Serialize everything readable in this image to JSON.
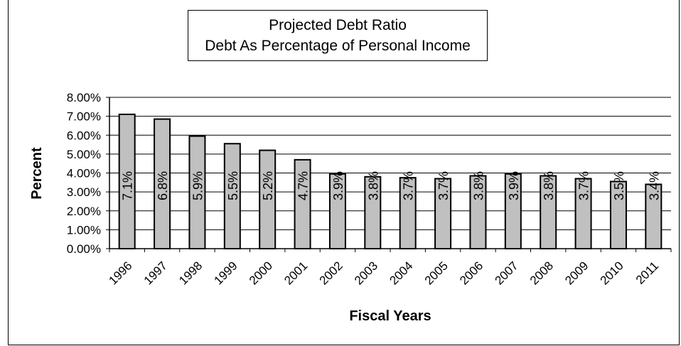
{
  "chart_data": {
    "type": "bar",
    "title": "Projected Debt Ratio",
    "subtitle": "Debt As Percentage of Personal Income",
    "xlabel": "Fiscal Years",
    "ylabel": "Percent",
    "categories": [
      "1996",
      "1997",
      "1998",
      "1999",
      "2000",
      "2001",
      "2002",
      "2003",
      "2004",
      "2005",
      "2006",
      "2007",
      "2008",
      "2009",
      "2010",
      "2011"
    ],
    "values": [
      7.1,
      6.85,
      5.95,
      5.55,
      5.2,
      4.7,
      3.95,
      3.8,
      3.75,
      3.7,
      3.85,
      3.95,
      3.85,
      3.7,
      3.55,
      3.4
    ],
    "data_labels": [
      "7.1%",
      "6.8%",
      "5.9%",
      "5.5%",
      "5.2%",
      "4.7%",
      "3.9%",
      "3.8%",
      "3.7%",
      "3.7%",
      "3.8%",
      "3.9%",
      "3.8%",
      "3.7%",
      "3.5%",
      "3.4%"
    ],
    "ylim": [
      0,
      8
    ],
    "yticks": [
      "0.00%",
      "1.00%",
      "2.00%",
      "3.00%",
      "4.00%",
      "5.00%",
      "6.00%",
      "7.00%",
      "8.00%"
    ],
    "grid": true,
    "legend": "none",
    "bar_color": "#c0c0c0"
  }
}
